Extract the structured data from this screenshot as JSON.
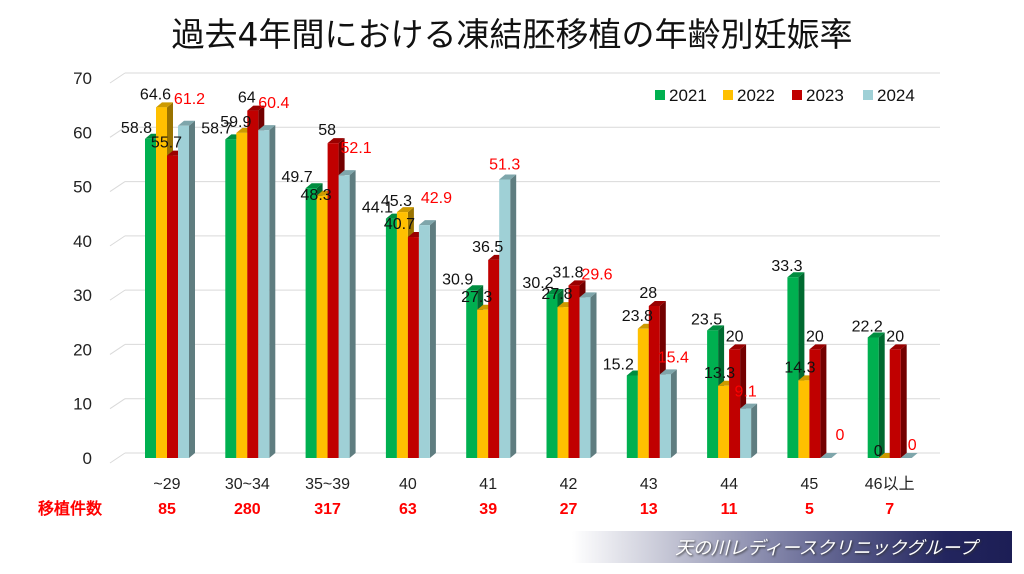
{
  "title": "過去4年間における凍結胚移植の年齢別妊娠率",
  "footer_brand": "天の川レディースクリニックグループ",
  "chart_data": {
    "type": "bar",
    "title": "過去4年間における凍結胚移植の年齢別妊娠率",
    "xlabel": "",
    "ylabel": "",
    "ylim": [
      0,
      70
    ],
    "yticks": [
      0,
      10,
      20,
      30,
      40,
      50,
      60,
      70
    ],
    "grid": true,
    "legend_position": "top-right",
    "categories": [
      "~29",
      "30~34",
      "35~39",
      "40",
      "41",
      "42",
      "43",
      "44",
      "45",
      "46以上"
    ],
    "series": [
      {
        "name": "2021",
        "color": "#00b050",
        "label_color": "#111111",
        "values": [
          58.8,
          58.7,
          49.7,
          44.1,
          30.9,
          30.2,
          15.2,
          23.5,
          33.3,
          22.2
        ]
      },
      {
        "name": "2022",
        "color": "#ffc000",
        "label_color": "#111111",
        "values": [
          64.6,
          59.9,
          48.3,
          45.3,
          27.3,
          27.8,
          23.8,
          13.3,
          14.3,
          0
        ]
      },
      {
        "name": "2023",
        "color": "#c00000",
        "label_color": "#111111",
        "values": [
          55.7,
          64,
          58,
          40.7,
          36.5,
          31.8,
          28,
          20,
          20,
          20
        ]
      },
      {
        "name": "2024",
        "color": "#9fd0d6",
        "label_color": "#ff0000",
        "values": [
          61.2,
          60.4,
          52.1,
          42.9,
          51.3,
          29.6,
          15.4,
          9.1,
          0,
          0
        ]
      }
    ],
    "transplant_count_label": "移植件数",
    "transplant_counts": [
      85,
      280,
      317,
      63,
      39,
      27,
      13,
      11,
      5,
      7
    ]
  }
}
